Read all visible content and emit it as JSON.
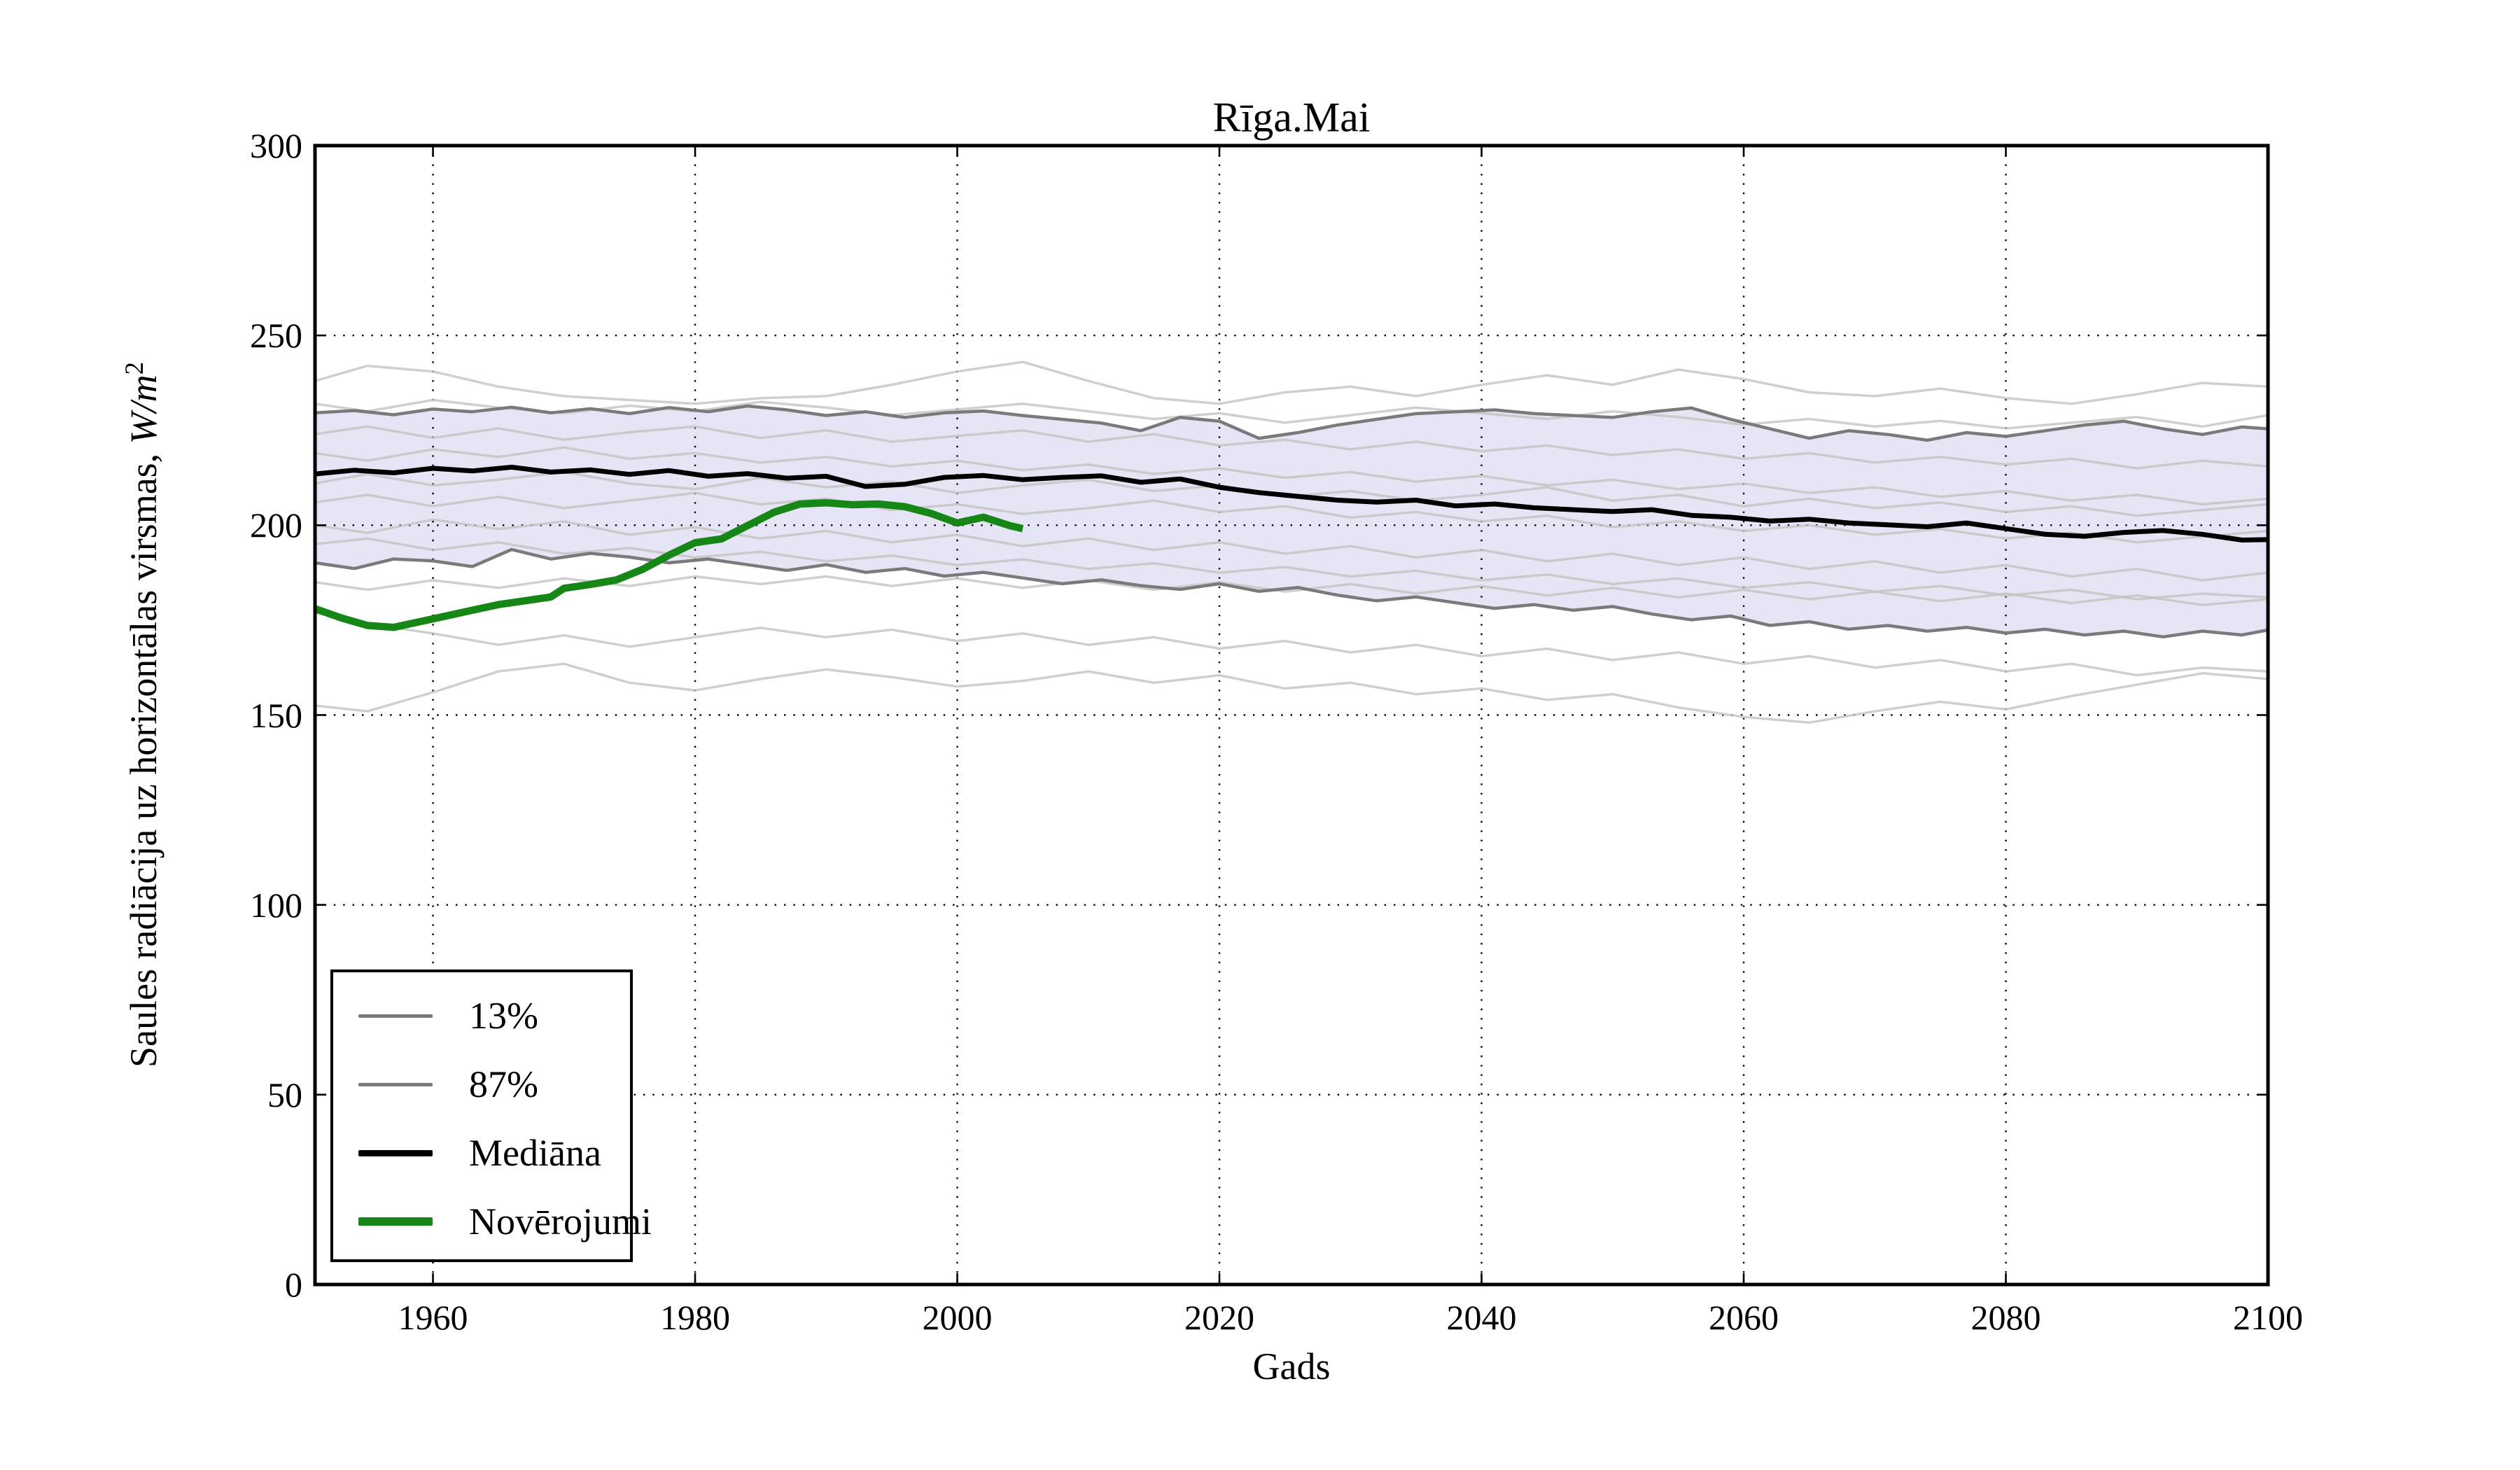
{
  "chart_data": {
    "type": "line",
    "title": "Rīga.Mai",
    "xlabel": "Gads",
    "ylabel": "Saules radiācija uz horizontālas virsmas, W/m²",
    "ylabel_text": "Saules radiācija uz horizontālas virsmas, ",
    "ylabel_unit": "W/m",
    "ylabel_unit_sup": "2",
    "axes": {
      "xlim": [
        1951,
        2100
      ],
      "ylim": [
        0,
        300
      ],
      "xticks": [
        1960,
        1980,
        2000,
        2020,
        2040,
        2060,
        2080,
        2100
      ],
      "yticks": [
        0,
        50,
        100,
        150,
        200,
        250,
        300
      ],
      "grid": "dotted",
      "legend_position": "lower left"
    },
    "colors": {
      "band_fill": "#e1e1f5",
      "band_edge": "#7a7a7a",
      "ensemble": "#c3c3c3",
      "median": "#000000",
      "observations": "#168616",
      "grid": "#000000",
      "spine": "#000000"
    },
    "band": {
      "lower_percentile": 13,
      "upper_percentile": 87
    },
    "years_fine": [
      1951,
      1954,
      1957,
      1960,
      1963,
      1966,
      1969,
      1972,
      1975,
      1978,
      1981,
      1984,
      1987,
      1990,
      1993,
      1996,
      1999,
      2002,
      2005,
      2008,
      2011,
      2014,
      2017,
      2020,
      2023,
      2026,
      2029,
      2032,
      2035,
      2038,
      2041,
      2044,
      2047,
      2050,
      2053,
      2056,
      2059,
      2062,
      2065,
      2068,
      2071,
      2074,
      2077,
      2080,
      2083,
      2086,
      2089,
      2092,
      2095,
      2098,
      2100
    ],
    "median": [
      213.5,
      214.5,
      213.8,
      215.0,
      214.3,
      215.3,
      214.0,
      214.6,
      213.4,
      214.4,
      212.9,
      213.6,
      212.4,
      212.9,
      210.2,
      210.8,
      212.6,
      213.1,
      212.0,
      212.6,
      213.0,
      211.3,
      212.2,
      210.0,
      208.6,
      207.6,
      206.6,
      206.1,
      206.6,
      205.1,
      205.6,
      204.6,
      204.1,
      203.6,
      204.1,
      202.6,
      202.1,
      201.1,
      201.6,
      200.6,
      200.1,
      199.6,
      200.6,
      199.1,
      197.6,
      197.1,
      198.1,
      198.6,
      197.6,
      196.1,
      196.2
    ],
    "p87": [
      229.6,
      230.2,
      229.1,
      230.6,
      229.9,
      231.1,
      229.6,
      230.7,
      229.4,
      231.0,
      229.9,
      231.4,
      230.4,
      228.9,
      229.9,
      228.4,
      229.6,
      230.1,
      228.9,
      227.9,
      226.9,
      224.9,
      228.4,
      227.4,
      222.9,
      224.4,
      226.4,
      227.9,
      229.4,
      229.9,
      230.4,
      229.4,
      228.9,
      228.4,
      229.9,
      230.9,
      227.9,
      225.4,
      222.9,
      224.9,
      223.9,
      222.4,
      224.4,
      223.4,
      224.9,
      226.4,
      227.4,
      225.4,
      223.9,
      225.9,
      225.4
    ],
    "p13": [
      190.1,
      188.6,
      191.1,
      190.6,
      189.1,
      193.6,
      191.1,
      192.6,
      191.6,
      190.1,
      191.1,
      189.6,
      188.1,
      189.6,
      187.6,
      188.6,
      186.6,
      187.6,
      186.1,
      184.6,
      185.6,
      184.1,
      183.1,
      184.6,
      182.6,
      183.6,
      181.6,
      180.1,
      181.1,
      179.6,
      178.1,
      179.1,
      177.6,
      178.6,
      176.6,
      175.1,
      176.1,
      173.6,
      174.6,
      172.6,
      173.6,
      172.1,
      173.1,
      171.6,
      172.6,
      171.1,
      172.1,
      170.6,
      172.1,
      171.1,
      172.4
    ],
    "observations": {
      "years": [
        1951,
        1953,
        1955,
        1957,
        1959,
        1961,
        1963,
        1965,
        1967,
        1969,
        1970,
        1972,
        1974,
        1976,
        1978,
        1980,
        1982,
        1984,
        1986,
        1988,
        1990,
        1992,
        1994,
        1996,
        1998,
        2000,
        2002,
        2004,
        2005
      ],
      "values": [
        178.0,
        175.6,
        173.6,
        173.1,
        174.6,
        176.1,
        177.6,
        179.1,
        180.1,
        181.1,
        183.4,
        184.4,
        185.6,
        188.4,
        192.1,
        195.4,
        196.4,
        199.9,
        203.4,
        205.6,
        205.9,
        205.4,
        205.6,
        204.9,
        203.1,
        200.6,
        202.1,
        199.9,
        199.1
      ]
    },
    "ensemble": {
      "years": [
        1951,
        1955,
        1960,
        1965,
        1970,
        1975,
        1980,
        1985,
        1990,
        1995,
        2000,
        2005,
        2010,
        2015,
        2020,
        2025,
        2030,
        2035,
        2040,
        2045,
        2050,
        2055,
        2060,
        2065,
        2070,
        2075,
        2080,
        2085,
        2090,
        2095,
        2100
      ],
      "lines": [
        [
          238,
          242,
          240.5,
          236.5,
          234,
          233,
          232,
          233.5,
          234,
          237,
          240.5,
          243,
          238,
          233.5,
          232,
          235,
          236.5,
          234,
          237,
          239.5,
          237,
          241,
          238.5,
          235,
          234,
          236,
          233.5,
          232,
          234.5,
          237.5,
          236.5
        ],
        [
          232,
          230,
          233,
          231,
          229.5,
          231.5,
          230,
          232.5,
          231,
          229,
          230.5,
          232,
          230,
          228,
          229.5,
          227,
          229,
          231,
          229.5,
          228,
          230,
          228.5,
          226.5,
          228,
          226,
          227.5,
          225.5,
          227,
          228.5,
          226,
          229
        ],
        [
          224,
          226,
          223,
          225.5,
          222.5,
          224.5,
          226,
          223,
          225,
          222,
          223.5,
          225,
          222,
          224,
          221,
          222.5,
          220,
          222,
          219.5,
          221,
          218.5,
          220,
          217.5,
          219,
          216.5,
          218,
          216,
          217.5,
          215,
          217,
          215.5
        ],
        [
          219,
          217,
          220,
          218,
          220.5,
          217.5,
          219,
          216.5,
          218,
          215.5,
          217,
          214.5,
          216,
          213.5,
          215,
          212.5,
          214,
          211.5,
          213,
          210.5,
          212,
          209.5,
          211,
          208.5,
          210,
          207.5,
          209,
          206.5,
          208,
          205.5,
          207
        ],
        [
          211,
          213.5,
          210.5,
          212,
          214,
          211,
          209.5,
          212.5,
          210,
          211.5,
          208.5,
          210.5,
          212,
          209,
          210.5,
          207.5,
          209,
          206.5,
          208,
          210,
          206.5,
          208,
          205,
          207,
          204.5,
          206,
          203.5,
          205,
          202.5,
          204,
          205.5
        ],
        [
          206,
          208,
          205,
          207.5,
          204.5,
          206.5,
          208.5,
          205.5,
          207,
          204,
          205.5,
          203,
          204.5,
          206.5,
          203.5,
          205,
          202,
          203.5,
          201,
          202.5,
          199.5,
          201,
          198.5,
          200,
          197.5,
          199,
          196.5,
          198,
          195.5,
          197,
          198.5
        ],
        [
          200,
          198,
          201.5,
          199,
          201,
          197.5,
          199.5,
          196.5,
          198.5,
          195.5,
          197.5,
          194.5,
          196.5,
          193.5,
          195.5,
          192.5,
          194.5,
          191.5,
          193.5,
          190.5,
          192.5,
          189.5,
          191.5,
          188.5,
          190.5,
          187.5,
          189.5,
          186.5,
          188.5,
          185.5,
          187.5
        ],
        [
          195,
          196.5,
          193.5,
          195.5,
          192.5,
          194,
          191.5,
          193,
          190.5,
          192,
          189.5,
          191,
          188.5,
          190,
          187.5,
          189,
          186.5,
          188,
          185.5,
          187,
          184.5,
          186,
          183.5,
          185,
          182.5,
          184,
          181.5,
          183,
          180.5,
          182,
          181
        ],
        [
          152.5,
          151,
          156,
          161.5,
          163.5,
          158.5,
          156.5,
          159.5,
          162,
          160,
          157.5,
          159,
          161.5,
          158.5,
          160.5,
          157,
          158.5,
          155.5,
          157,
          154,
          155.5,
          152,
          149.5,
          148,
          151,
          153.5,
          151.5,
          155,
          158,
          161,
          159.5
        ],
        [
          177,
          174,
          171.5,
          168.5,
          171,
          168,
          170.5,
          173,
          170.5,
          172.5,
          169.5,
          171.5,
          168.5,
          170.5,
          167.5,
          169.5,
          166.5,
          168.5,
          165.5,
          167.5,
          164.5,
          166.5,
          163.5,
          165.5,
          162.5,
          164.5,
          161.5,
          163.5,
          160.5,
          162.5,
          161.5
        ],
        [
          185,
          183,
          185.5,
          183.5,
          186,
          184,
          186.5,
          184.5,
          186.5,
          184,
          186,
          183.5,
          185.5,
          183,
          185,
          182.5,
          184.5,
          182,
          184,
          181.5,
          183.5,
          181,
          183,
          180.5,
          182.5,
          180,
          182,
          179.5,
          181.5,
          179,
          180.5
        ]
      ]
    }
  },
  "legend": {
    "items": [
      {
        "label": "13%",
        "color_key": "band_edge",
        "thickness": 5
      },
      {
        "label": "87%",
        "color_key": "band_edge",
        "thickness": 5
      },
      {
        "label": "Mediāna",
        "color_key": "median",
        "thickness": 9
      },
      {
        "label": "Novērojumi",
        "color_key": "observations",
        "thickness": 12
      }
    ]
  }
}
